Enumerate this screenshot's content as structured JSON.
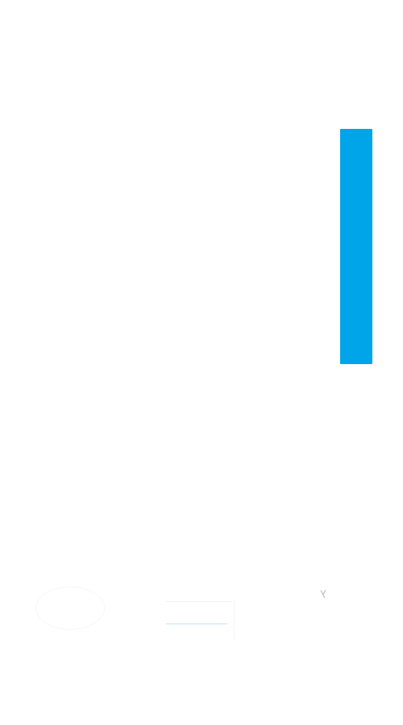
{
  "colors": {
    "background": "#ffffff",
    "panel_accent": "#00a4e8",
    "faint_line_accent": "#bfe4f5"
  },
  "side_panel": {
    "icon": "none"
  },
  "controls": {
    "left_icon": "ring-icon",
    "middle_icon": "bars-icon",
    "right_icon": "close-mark-icon"
  }
}
